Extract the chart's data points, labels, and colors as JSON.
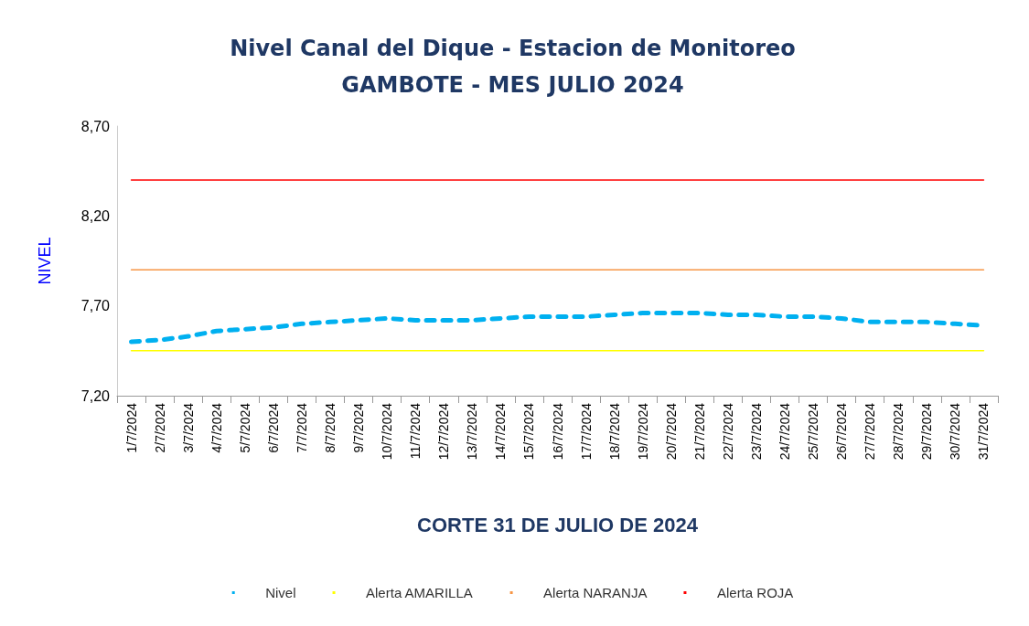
{
  "chart_data": {
    "type": "line",
    "title": "Nivel Canal del Dique - Estacion de Monitoreo\nGAMBOTE - MES JULIO 2024",
    "xlabel": "CORTE 31 DE JULIO DE 2024",
    "ylabel": "NIVEL",
    "categories": [
      "1/7/2024",
      "2/7/2024",
      "3/7/2024",
      "4/7/2024",
      "5/7/2024",
      "6/7/2024",
      "7/7/2024",
      "8/7/2024",
      "9/7/2024",
      "10/7/2024",
      "11/7/2024",
      "12/7/2024",
      "13/7/2024",
      "14/7/2024",
      "15/7/2024",
      "16/7/2024",
      "17/7/2024",
      "18/7/2024",
      "19/7/2024",
      "20/7/2024",
      "21/7/2024",
      "22/7/2024",
      "23/7/2024",
      "24/7/2024",
      "25/7/2024",
      "26/7/2024",
      "27/7/2024",
      "28/7/2024",
      "29/7/2024",
      "30/7/2024",
      "31/7/2024"
    ],
    "series": [
      {
        "name": "Nivel",
        "color": "#00b0f0",
        "line_style": "dashed",
        "values": [
          7.5,
          7.51,
          7.53,
          7.56,
          7.57,
          7.58,
          7.6,
          7.61,
          7.62,
          7.63,
          7.62,
          7.62,
          7.62,
          7.63,
          7.64,
          7.64,
          7.64,
          7.65,
          7.66,
          7.66,
          7.66,
          7.65,
          7.65,
          7.64,
          7.64,
          7.63,
          7.61,
          7.61,
          7.61,
          7.6,
          7.59
        ]
      },
      {
        "name": "Alerta AMARILLA",
        "color": "#ffff00",
        "line_style": "solid",
        "values": [
          7.45,
          7.45,
          7.45,
          7.45,
          7.45,
          7.45,
          7.45,
          7.45,
          7.45,
          7.45,
          7.45,
          7.45,
          7.45,
          7.45,
          7.45,
          7.45,
          7.45,
          7.45,
          7.45,
          7.45,
          7.45,
          7.45,
          7.45,
          7.45,
          7.45,
          7.45,
          7.45,
          7.45,
          7.45,
          7.45,
          7.45
        ]
      },
      {
        "name": "Alerta NARANJA",
        "color": "#f79646",
        "line_style": "solid",
        "values": [
          7.9,
          7.9,
          7.9,
          7.9,
          7.9,
          7.9,
          7.9,
          7.9,
          7.9,
          7.9,
          7.9,
          7.9,
          7.9,
          7.9,
          7.9,
          7.9,
          7.9,
          7.9,
          7.9,
          7.9,
          7.9,
          7.9,
          7.9,
          7.9,
          7.9,
          7.9,
          7.9,
          7.9,
          7.9,
          7.9,
          7.9
        ]
      },
      {
        "name": "Alerta ROJA",
        "color": "#ff0000",
        "line_style": "solid",
        "values": [
          8.4,
          8.4,
          8.4,
          8.4,
          8.4,
          8.4,
          8.4,
          8.4,
          8.4,
          8.4,
          8.4,
          8.4,
          8.4,
          8.4,
          8.4,
          8.4,
          8.4,
          8.4,
          8.4,
          8.4,
          8.4,
          8.4,
          8.4,
          8.4,
          8.4,
          8.4,
          8.4,
          8.4,
          8.4,
          8.4,
          8.4
        ]
      }
    ],
    "ylim": [
      7.2,
      8.7
    ],
    "yticks": [
      {
        "value": 7.2,
        "label": "7,20"
      },
      {
        "value": 7.7,
        "label": "7,70"
      },
      {
        "value": 8.2,
        "label": "8,20"
      },
      {
        "value": 8.7,
        "label": "8,70"
      }
    ],
    "grid": false,
    "legend": "bottom",
    "marker": "none"
  }
}
